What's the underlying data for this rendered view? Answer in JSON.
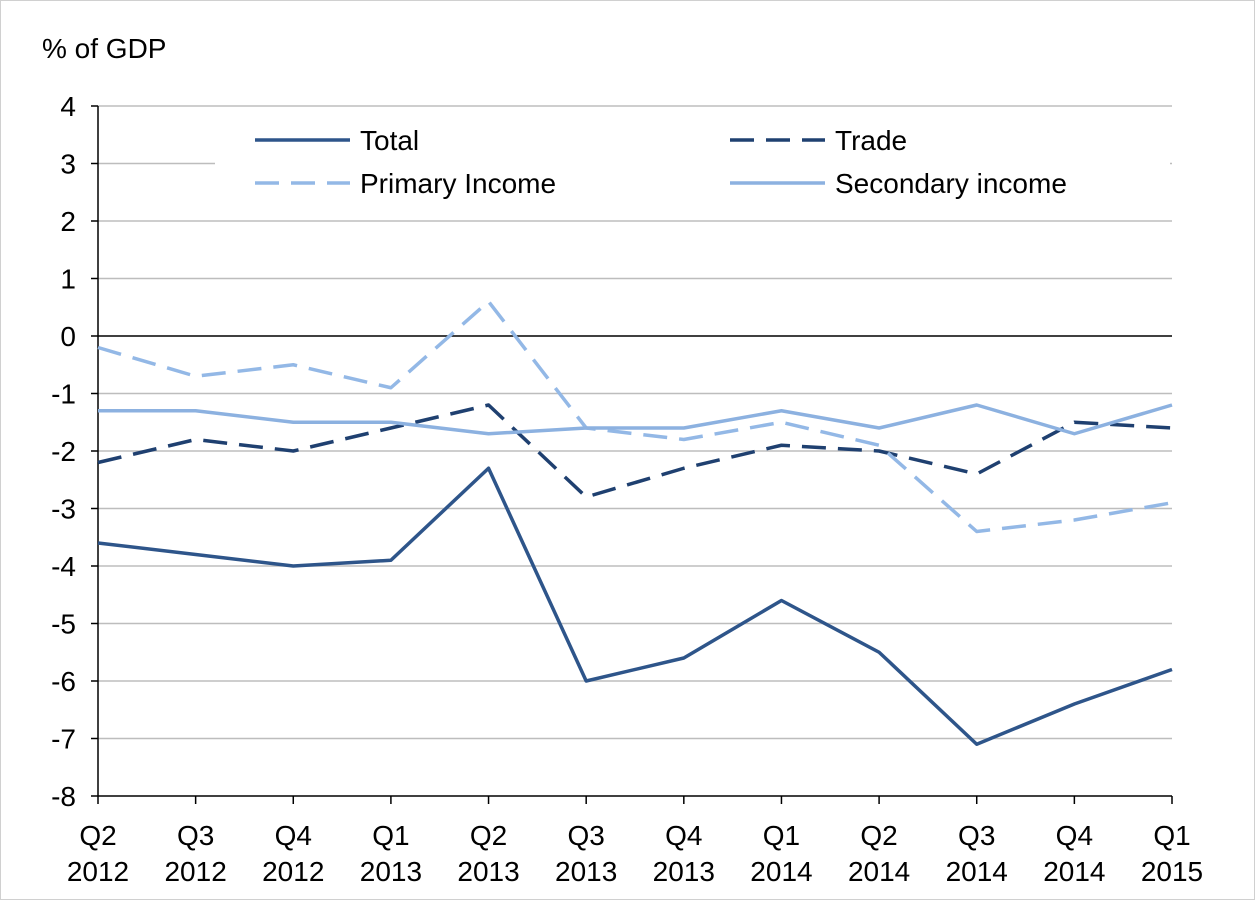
{
  "chart_data": {
    "type": "line",
    "y_label": "% of GDP",
    "categories": [
      "Q2 2012",
      "Q3 2012",
      "Q4 2012",
      "Q1 2013",
      "Q2 2013",
      "Q3 2013",
      "Q4 2013",
      "Q1 2014",
      "Q2 2014",
      "Q3 2014",
      "Q4 2014",
      "Q1 2015"
    ],
    "series": [
      {
        "name": "Total",
        "color": "#2e558a",
        "style": "solid",
        "values": [
          -3.6,
          -3.8,
          -4.0,
          -3.9,
          -2.3,
          -6.0,
          -5.6,
          -4.6,
          -5.5,
          -7.1,
          -6.4,
          -5.8
        ]
      },
      {
        "name": "Trade",
        "color": "#1f4070",
        "style": "dashed",
        "values": [
          -2.2,
          -1.8,
          -2.0,
          -1.6,
          -1.2,
          -2.8,
          -2.3,
          -1.9,
          -2.0,
          -2.4,
          -1.5,
          -1.6
        ]
      },
      {
        "name": "Primary Income",
        "color": "#93b8e6",
        "style": "dashed",
        "values": [
          -0.2,
          -0.7,
          -0.5,
          -0.9,
          0.6,
          -1.6,
          -1.8,
          -1.5,
          -1.9,
          -3.4,
          -3.2,
          -2.9
        ]
      },
      {
        "name": "Secondary income",
        "color": "#8cb1e0",
        "style": "solid",
        "values": [
          -1.3,
          -1.3,
          -1.5,
          -1.5,
          -1.7,
          -1.6,
          -1.6,
          -1.3,
          -1.6,
          -1.2,
          -1.7,
          -1.2
        ]
      }
    ],
    "ylim": [
      -8,
      4
    ],
    "yticks": [
      -8,
      -7,
      -6,
      -5,
      -4,
      -3,
      -2,
      -1,
      0,
      1,
      2,
      3,
      4
    ],
    "grid": true
  }
}
